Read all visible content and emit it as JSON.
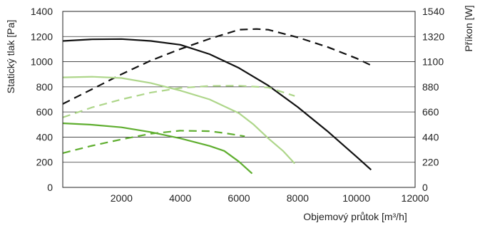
{
  "chart_data": {
    "type": "line",
    "xlabel": "Objemový průtok [m³/h]",
    "ylabel": "Statický tlak [Pa]",
    "y2label": "Příkon [W]",
    "xlim": [
      0,
      12000
    ],
    "ylim": [
      0,
      1400
    ],
    "y2lim": [
      0,
      1540
    ],
    "x_ticks": [
      "2000",
      "4000",
      "6000",
      "8000",
      "10000",
      "12000"
    ],
    "y_ticks": [
      "0",
      "200",
      "400",
      "600",
      "800",
      "1000",
      "1200",
      "1400"
    ],
    "y2_ticks": [
      "0",
      "220",
      "440",
      "660",
      "880",
      "1100",
      "1320",
      "1540"
    ],
    "grid": "horizontal",
    "series": [
      {
        "axis": "left",
        "style": "solid",
        "color": "#111111",
        "points": [
          [
            0,
            1165
          ],
          [
            1000,
            1178
          ],
          [
            2000,
            1180
          ],
          [
            3000,
            1165
          ],
          [
            4000,
            1135
          ],
          [
            5000,
            1060
          ],
          [
            6000,
            950
          ],
          [
            7000,
            810
          ],
          [
            8000,
            640
          ],
          [
            9000,
            450
          ],
          [
            10000,
            245
          ],
          [
            10500,
            140
          ]
        ]
      },
      {
        "axis": "right",
        "style": "dashed",
        "color": "#111111",
        "points": [
          [
            0,
            730
          ],
          [
            1000,
            860
          ],
          [
            2000,
            990
          ],
          [
            3000,
            1110
          ],
          [
            4000,
            1210
          ],
          [
            5000,
            1300
          ],
          [
            6000,
            1380
          ],
          [
            6600,
            1386
          ],
          [
            7000,
            1380
          ],
          [
            8000,
            1313
          ],
          [
            9000,
            1230
          ],
          [
            10000,
            1130
          ],
          [
            10500,
            1068
          ]
        ]
      },
      {
        "axis": "left",
        "style": "solid",
        "color": "#aed68a",
        "points": [
          [
            0,
            875
          ],
          [
            1000,
            880
          ],
          [
            2000,
            870
          ],
          [
            3000,
            830
          ],
          [
            4000,
            770
          ],
          [
            5000,
            700
          ],
          [
            6000,
            590
          ],
          [
            6500,
            500
          ],
          [
            7000,
            390
          ],
          [
            7500,
            290
          ],
          [
            7900,
            190
          ]
        ]
      },
      {
        "axis": "right",
        "style": "dashed",
        "color": "#aed68a",
        "points": [
          [
            0,
            612
          ],
          [
            1000,
            700
          ],
          [
            2000,
            770
          ],
          [
            3000,
            830
          ],
          [
            4000,
            870
          ],
          [
            5000,
            888
          ],
          [
            6000,
            890
          ],
          [
            7000,
            874
          ],
          [
            7900,
            800
          ]
        ]
      },
      {
        "axis": "left",
        "style": "solid",
        "color": "#5fae2f",
        "points": [
          [
            0,
            510
          ],
          [
            1000,
            498
          ],
          [
            2000,
            478
          ],
          [
            3000,
            440
          ],
          [
            4000,
            390
          ],
          [
            5000,
            330
          ],
          [
            5500,
            290
          ],
          [
            6000,
            205
          ],
          [
            6450,
            110
          ]
        ]
      },
      {
        "axis": "right",
        "style": "dashed",
        "color": "#5fae2f",
        "points": [
          [
            0,
            300
          ],
          [
            1000,
            365
          ],
          [
            2000,
            420
          ],
          [
            3000,
            470
          ],
          [
            4000,
            496
          ],
          [
            5000,
            492
          ],
          [
            5500,
            476
          ],
          [
            6200,
            447
          ]
        ]
      }
    ]
  }
}
